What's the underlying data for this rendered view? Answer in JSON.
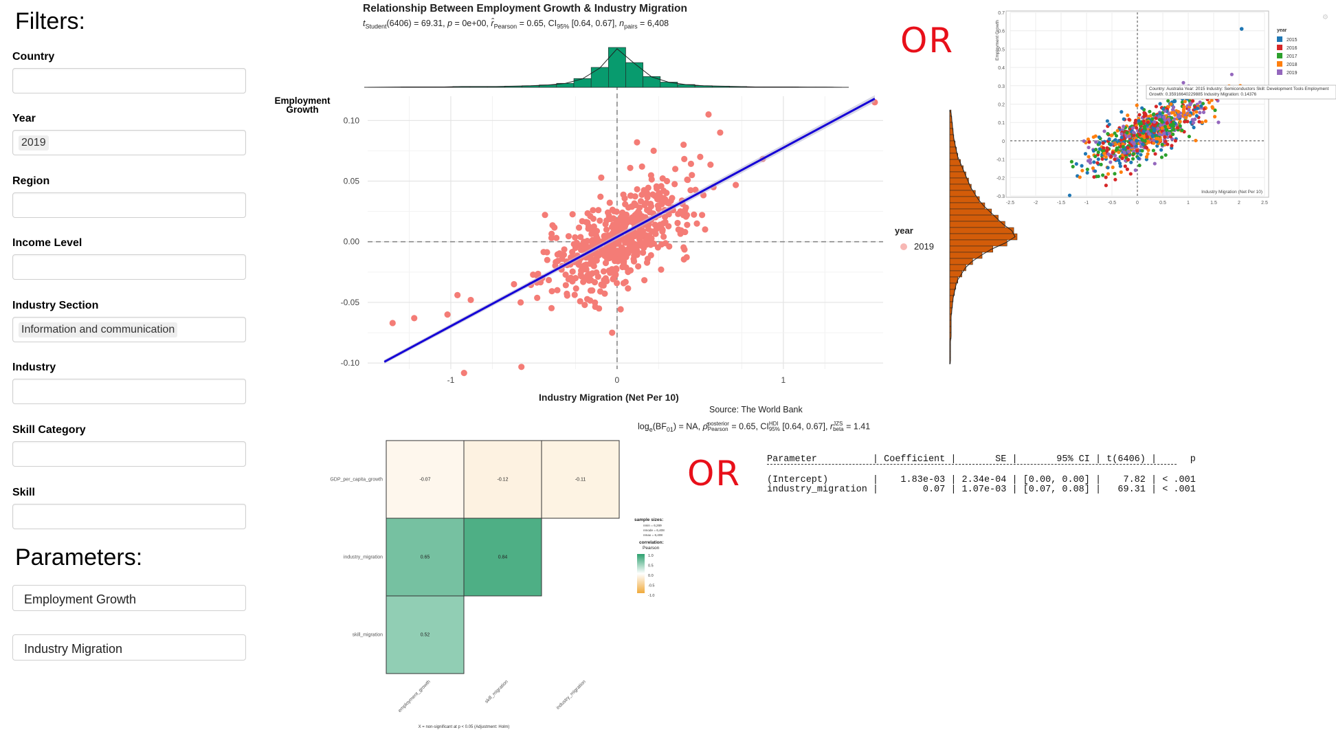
{
  "filters": {
    "title": "Filters:",
    "fields": [
      {
        "label": "Country",
        "value": ""
      },
      {
        "label": "Year",
        "value": "2019"
      },
      {
        "label": "Region",
        "value": ""
      },
      {
        "label": "Income Level",
        "value": ""
      },
      {
        "label": "Industry Section",
        "value": "Information and communication"
      },
      {
        "label": "Industry",
        "value": ""
      },
      {
        "label": "Skill Category",
        "value": ""
      },
      {
        "label": "Skill",
        "value": ""
      }
    ]
  },
  "parameters": {
    "title": "Parameters:",
    "fields": [
      "Employment Growth",
      "Industry Migration"
    ]
  },
  "scatter_main": {
    "title": "Relationship Between Employment Growth & Industry Migration",
    "subtitle_parts": [
      "t",
      "Student",
      "(6406) = 69.31, ",
      "p",
      " = 0e+00, ",
      "r",
      "Pearson",
      " = 0.65, CI",
      "95%",
      " [0.64, 0.67], ",
      "n",
      "pairs",
      " = 6,408"
    ],
    "ylabel_line1": "Employment",
    "ylabel_line2": "Growth",
    "xlabel": "Industry Migration (Net Per 10)",
    "source": "Source: The World Bank",
    "bayes_parts": [
      "log",
      "e",
      "(BF",
      "01",
      ") = NA, ",
      "ρ",
      "posterior",
      "Pearson",
      " = 0.65, CI",
      "HDI",
      "95%",
      " [0.64, 0.67], ",
      "r",
      "JZS",
      "beta",
      " = 1.41"
    ],
    "legend_title": "year",
    "legend_item": "2019",
    "y_ticks": [
      "0.10",
      "0.05",
      "0.00",
      "-0.05",
      "-0.10"
    ],
    "x_ticks": [
      "-1",
      "0",
      "1"
    ],
    "point_color": "#f47c76",
    "line_color": "#1400d6",
    "hist_top_color": "#089b6e",
    "hist_right_color": "#d35c09"
  },
  "chart_data": [
    {
      "type": "scatter",
      "title": "Relationship Between Employment Growth & Industry Migration",
      "xlabel": "Industry Migration (Net Per 10)",
      "ylabel": "Employment Growth",
      "xlim": [
        -1.5,
        1.6
      ],
      "ylim": [
        -0.105,
        0.12
      ],
      "fit_line": {
        "x": [
          -1.4,
          1.55
        ],
        "y": [
          -0.099,
          0.118
        ]
      },
      "series": [
        {
          "name": "2019",
          "x": [
            -1.35,
            -1.22,
            -1.02,
            -0.96,
            -0.88,
            -0.62,
            -0.58,
            -0.48,
            -0.45,
            -0.42,
            -0.33,
            -0.25,
            -0.2,
            -0.15,
            0.05,
            0.1,
            0.18,
            0.25,
            0.3,
            0.35,
            0.4,
            0.45,
            0.5,
            0.58,
            0.62,
            0.55,
            0.12,
            0.15,
            0.28,
            0.22,
            0.42,
            0.48,
            1.55
          ],
          "y": [
            -0.067,
            -0.063,
            -0.06,
            -0.044,
            -0.048,
            -0.035,
            -0.05,
            -0.028,
            -0.03,
            -0.015,
            -0.02,
            -0.005,
            0.0,
            0.01,
            0.02,
            0.03,
            0.04,
            0.035,
            0.05,
            0.06,
            0.08,
            0.055,
            0.07,
            0.045,
            0.09,
            0.105,
            0.082,
            0.062,
            0.042,
            0.075,
            0.022,
            0.015,
            0.115
          ]
        }
      ]
    },
    {
      "type": "heatmap",
      "rows": [
        "GDP_per_capita_growth",
        "industry_migration",
        "skill_migration"
      ],
      "columns": [
        "employment_growth",
        "skill_migration",
        "industry_migration"
      ],
      "cells": [
        {
          "row": "GDP_per_capita_growth",
          "col": "employment_growth",
          "value": -0.07
        },
        {
          "row": "GDP_per_capita_growth",
          "col": "skill_migration",
          "value": -0.12
        },
        {
          "row": "GDP_per_capita_growth",
          "col": "industry_migration",
          "value": -0.11
        },
        {
          "row": "industry_migration",
          "col": "employment_growth",
          "value": 0.65
        },
        {
          "row": "industry_migration",
          "col": "skill_migration",
          "value": 0.84
        },
        {
          "row": "skill_migration",
          "col": "employment_growth",
          "value": 0.52
        }
      ],
      "legend_title_1": "sample sizes:",
      "legend_title_2": "correlation:",
      "legend_title_3": "Pearson",
      "sample_sizes": [
        "n",
        "min",
        " = 6,269",
        "n",
        "mode",
        " = 6,408",
        "n",
        "max",
        " = 6,408"
      ],
      "legend_ticks": [
        "1.0",
        "0.5",
        "0.0",
        "-0.5",
        "-1.0"
      ],
      "footnote": "X = non-significant at p < 0.05 (Adjustment: Holm)"
    },
    {
      "type": "scatter",
      "ylabel": "Employment Growth",
      "xlabel": "Industry Migration (Net Per 10)",
      "xlim": [
        -2.5,
        2.5
      ],
      "ylim": [
        -0.3,
        0.7
      ],
      "x_ticks": [
        "-2.5",
        "-2",
        "-1.5",
        "-1",
        "-0.5",
        "0",
        "0.5",
        "1",
        "1.5",
        "2",
        "2.5"
      ],
      "y_ticks": [
        "0.7",
        "0.6",
        "0.5",
        "0.4",
        "0.3",
        "0.2",
        "0.1",
        "0",
        "-0.1",
        "-0.2",
        "-0.3"
      ],
      "legend_title": "year",
      "series": [
        {
          "name": "2015",
          "color": "#1f77b4"
        },
        {
          "name": "2016",
          "color": "#d62728"
        },
        {
          "name": "2017",
          "color": "#2ca02c"
        },
        {
          "name": "2018",
          "color": "#ff7f0e"
        },
        {
          "name": "2019",
          "color": "#9467bd"
        }
      ],
      "tooltip": "Country: Australia Year: 2015 Industry: Semiconductors Skill: Development Tools Employment Growth: 0.35916640229885 Industry Migration: 0.14376"
    }
  ],
  "annotations": {
    "or_1": "OR",
    "or_2": "OR"
  },
  "regression_table": {
    "header": "Parameter          | Coefficient |       SE |       95% CI | t(6406) |      p",
    "divider": "------------------------------------------------------------------------------",
    "rows": [
      "(Intercept)        |    1.83e-03 | 2.34e-04 | [0.00, 0.00] |    7.82 | < .001",
      "industry_migration |        0.07 | 1.07e-03 | [0.07, 0.08] |   69.31 | < .001"
    ]
  }
}
